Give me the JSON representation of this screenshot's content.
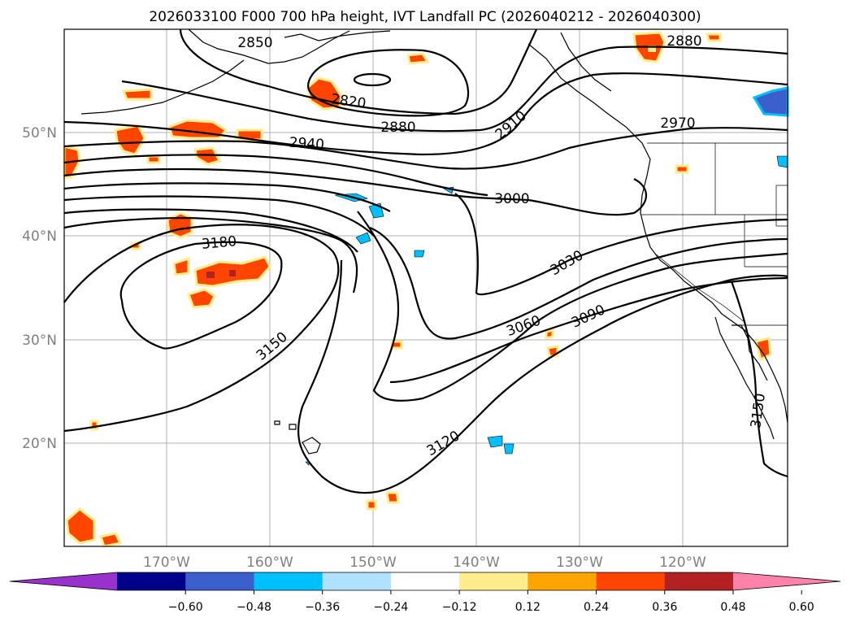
{
  "title": "2026033100 F000 700 hPa height, IVT Landfall PC (2026040212 - 2026040300)",
  "map": {
    "lon_labels": [
      "170°W",
      "160°W",
      "150°W",
      "140°W",
      "130°W",
      "120°W"
    ],
    "lat_labels": [
      "50°N",
      "40°N",
      "30°N",
      "20°N"
    ],
    "contour_labels": [
      "2850",
      "2820",
      "2880",
      "2880",
      "2910",
      "2970",
      "2940",
      "3000",
      "3180",
      "3030",
      "3060",
      "3090",
      "3150",
      "3120",
      "3150"
    ],
    "colors": {
      "contour": "#000000",
      "grid": "#b0b0b0",
      "coast": "#000000"
    }
  },
  "colorbar": {
    "ticks": [
      "−0.60",
      "−0.48",
      "−0.36",
      "−0.24",
      "−0.12",
      "0.12",
      "0.24",
      "0.36",
      "0.48",
      "0.60"
    ],
    "colors": [
      "#9932cc",
      "#00008b",
      "#3a5fcd",
      "#00bfff",
      "#b0e2ff",
      "#ffffff",
      "#ffec8b",
      "#ffa500",
      "#ff4500",
      "#b22222",
      "#ff82ab"
    ]
  }
}
